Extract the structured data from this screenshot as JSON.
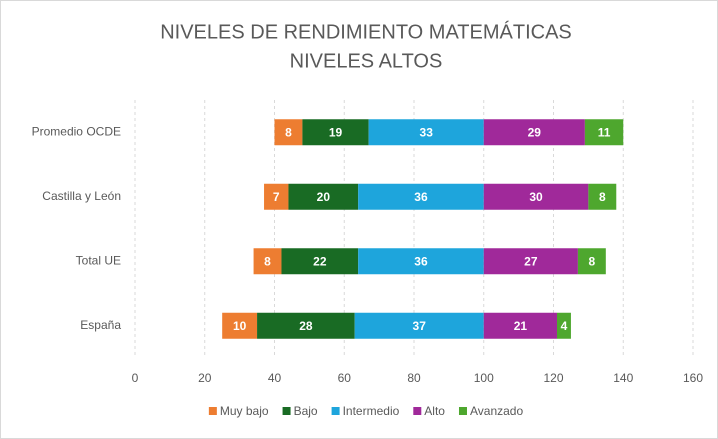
{
  "chart_data": {
    "type": "diverging_stacked_barh",
    "title": "NIVELES DE RENDIMIENTO MATEMÁTICAS",
    "subtitle": "NIVELES ALTOS",
    "categories": [
      "Promedio OCDE",
      "Castilla y León",
      "Total UE",
      "España"
    ],
    "series": [
      {
        "name": "Muy bajo",
        "color": "#ed7d31",
        "values": [
          8,
          7,
          8,
          10
        ]
      },
      {
        "name": "Bajo",
        "color": "#196b24",
        "values": [
          19,
          20,
          22,
          28
        ]
      },
      {
        "name": "Intermedio",
        "color": "#1ea5dc",
        "values": [
          33,
          36,
          36,
          37
        ]
      },
      {
        "name": "Alto",
        "color": "#a0299a",
        "values": [
          29,
          30,
          27,
          21
        ]
      },
      {
        "name": "Avanzado",
        "color": "#4ea72e",
        "values": [
          11,
          8,
          8,
          4
        ]
      }
    ],
    "diverging": {
      "at": 100,
      "split_after_series": 2
    },
    "xlim": [
      0,
      160
    ],
    "xticks": [
      0,
      20,
      40,
      60,
      80,
      100,
      120,
      140,
      160
    ],
    "grid": true,
    "legend": "bottom"
  }
}
